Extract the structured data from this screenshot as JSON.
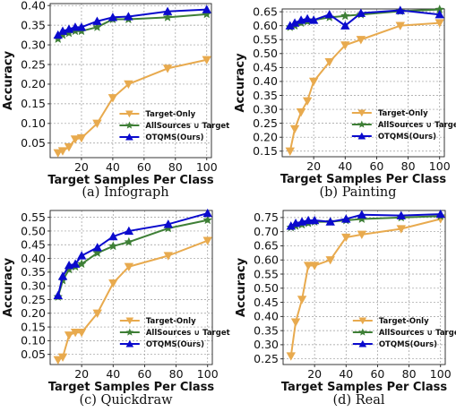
{
  "chart_data": [
    {
      "type": "line",
      "caption": "(a) Infograph",
      "xlabel": "Target Samples Per Class",
      "ylabel": "Accuracy",
      "xlim": [
        0,
        103
      ],
      "ylim": [
        0.013,
        0.405
      ],
      "xticks": [
        20,
        40,
        60,
        80,
        100
      ],
      "yticks": [
        0.05,
        0.1,
        0.15,
        0.2,
        0.25,
        0.3,
        0.35,
        0.4
      ],
      "ytick_labels": [
        "0.05",
        "0.10",
        "0.15",
        "0.20",
        "0.25",
        "0.30",
        "0.35",
        "0.40"
      ],
      "grid": true,
      "legend_position": "lower-right",
      "x": [
        5,
        8,
        12,
        16,
        20,
        30,
        40,
        50,
        75,
        100
      ],
      "series": [
        {
          "name": "Target-Only",
          "color": "#E8AA4E",
          "marker": "triangle-down",
          "values": [
            0.025,
            0.03,
            0.04,
            0.06,
            0.063,
            0.1,
            0.165,
            0.2,
            0.24,
            0.262
          ]
        },
        {
          "name": "AllSources ∪ Target",
          "color": "#3E7F36",
          "marker": "star",
          "values": [
            0.315,
            0.325,
            0.33,
            0.335,
            0.335,
            0.345,
            0.365,
            0.365,
            0.37,
            0.378
          ]
        },
        {
          "name": "OTQMS(Ours)",
          "color": "#0A0ACD",
          "marker": "triangle-up",
          "values": [
            0.325,
            0.335,
            0.34,
            0.345,
            0.345,
            0.36,
            0.37,
            0.372,
            0.385,
            0.39
          ]
        }
      ]
    },
    {
      "type": "line",
      "caption": "(b) Painting",
      "xlabel": "Target Samples Per Class",
      "ylabel": "Accuracy",
      "xlim": [
        0,
        103
      ],
      "ylim": [
        0.13,
        0.66
      ],
      "xticks": [
        20,
        40,
        60,
        80,
        100
      ],
      "yticks": [
        0.15,
        0.2,
        0.25,
        0.3,
        0.35,
        0.4,
        0.45,
        0.5,
        0.55,
        0.6,
        0.65
      ],
      "ytick_labels": [
        "0.15",
        "0.20",
        "0.25",
        "0.30",
        "0.35",
        "0.40",
        "0.45",
        "0.50",
        "0.55",
        "0.60",
        "0.65"
      ],
      "grid": true,
      "legend_position": "lower-right",
      "x": [
        5,
        8,
        12,
        16,
        20,
        30,
        40,
        50,
        75,
        100
      ],
      "series": [
        {
          "name": "Target-Only",
          "color": "#E8AA4E",
          "marker": "triangle-down",
          "values": [
            0.15,
            0.23,
            0.29,
            0.33,
            0.4,
            0.47,
            0.53,
            0.55,
            0.6,
            0.61
          ]
        },
        {
          "name": "AllSources ∪ Target",
          "color": "#3E7F36",
          "marker": "star",
          "values": [
            0.595,
            0.6,
            0.61,
            0.615,
            0.62,
            0.63,
            0.635,
            0.64,
            0.652,
            0.658
          ]
        },
        {
          "name": "OTQMS(Ours)",
          "color": "#0A0ACD",
          "marker": "triangle-up",
          "values": [
            0.6,
            0.61,
            0.62,
            0.625,
            0.62,
            0.64,
            0.6,
            0.645,
            0.655,
            0.64
          ]
        }
      ]
    },
    {
      "type": "line",
      "caption": "(c) Quickdraw",
      "xlabel": "Target Samples Per Class",
      "ylabel": "Accuracy",
      "xlim": [
        0,
        103
      ],
      "ylim": [
        0.013,
        0.575
      ],
      "xticks": [
        20,
        40,
        60,
        80,
        100
      ],
      "yticks": [
        0.05,
        0.1,
        0.15,
        0.2,
        0.25,
        0.3,
        0.35,
        0.4,
        0.45,
        0.5,
        0.55
      ],
      "ytick_labels": [
        "0.05",
        "0.10",
        "0.15",
        "0.20",
        "0.25",
        "0.30",
        "0.35",
        "0.40",
        "0.45",
        "0.50",
        "0.55"
      ],
      "grid": true,
      "legend_position": "lower-right",
      "x": [
        5,
        8,
        12,
        16,
        20,
        30,
        40,
        50,
        75,
        100
      ],
      "series": [
        {
          "name": "Target-Only",
          "color": "#E8AA4E",
          "marker": "triangle-down",
          "values": [
            0.03,
            0.04,
            0.12,
            0.13,
            0.13,
            0.2,
            0.31,
            0.37,
            0.41,
            0.465
          ]
        },
        {
          "name": "AllSources ∪ Target",
          "color": "#3E7F36",
          "marker": "star",
          "values": [
            0.26,
            0.32,
            0.36,
            0.37,
            0.38,
            0.42,
            0.445,
            0.46,
            0.51,
            0.54
          ]
        },
        {
          "name": "OTQMS(Ours)",
          "color": "#0A0ACD",
          "marker": "triangle-up",
          "values": [
            0.265,
            0.335,
            0.375,
            0.38,
            0.41,
            0.44,
            0.48,
            0.5,
            0.525,
            0.565
          ]
        }
      ]
    },
    {
      "type": "line",
      "caption": "(d) Real",
      "xlabel": "Target Samples Per Class",
      "ylabel": "Accuracy",
      "xlim": [
        0,
        103
      ],
      "ylim": [
        0.23,
        0.775
      ],
      "xticks": [
        20,
        40,
        60,
        80,
        100
      ],
      "yticks": [
        0.25,
        0.3,
        0.35,
        0.4,
        0.45,
        0.5,
        0.55,
        0.6,
        0.65,
        0.7,
        0.75
      ],
      "ytick_labels": [
        "0.25",
        "0.30",
        "0.35",
        "0.40",
        "0.45",
        "0.50",
        "0.55",
        "0.60",
        "0.65",
        "0.70",
        "0.75"
      ],
      "grid": true,
      "legend_position": "lower-right",
      "x": [
        5,
        8,
        12,
        16,
        20,
        30,
        40,
        50,
        75,
        100
      ],
      "series": [
        {
          "name": "Target-Only",
          "color": "#E8AA4E",
          "marker": "triangle-down",
          "values": [
            0.26,
            0.38,
            0.46,
            0.58,
            0.58,
            0.6,
            0.68,
            0.69,
            0.71,
            0.745
          ]
        },
        {
          "name": "AllSources ∪ Target",
          "color": "#3E7F36",
          "marker": "star",
          "values": [
            0.715,
            0.72,
            0.725,
            0.73,
            0.735,
            0.735,
            0.74,
            0.745,
            0.75,
            0.755
          ]
        },
        {
          "name": "OTQMS(Ours)",
          "color": "#0A0ACD",
          "marker": "triangle-up",
          "values": [
            0.72,
            0.73,
            0.735,
            0.74,
            0.74,
            0.735,
            0.745,
            0.76,
            0.757,
            0.762
          ]
        }
      ]
    }
  ]
}
